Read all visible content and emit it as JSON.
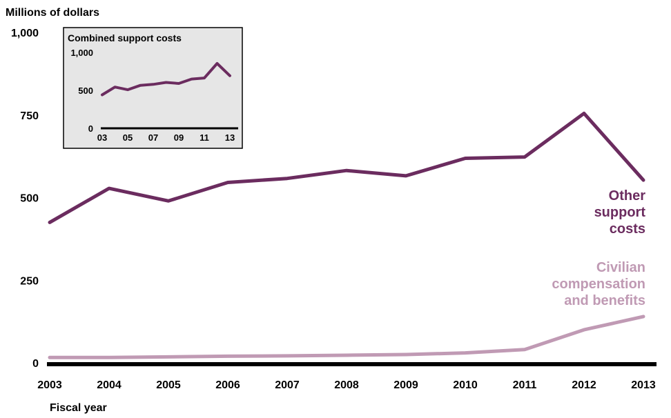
{
  "chart_data": [
    {
      "type": "line",
      "ylabel": "Millions of dollars",
      "xlabel": "Fiscal year",
      "x": [
        2003,
        2004,
        2005,
        2006,
        2007,
        2008,
        2009,
        2010,
        2011,
        2012,
        2013
      ],
      "x_tick_labels": [
        "2003",
        "2004",
        "2005",
        "2006",
        "2007",
        "2008",
        "2009",
        "2010",
        "2011",
        "2012",
        "2013"
      ],
      "y_ticks": [
        0,
        250,
        500,
        750,
        1000
      ],
      "y_tick_labels": [
        "0",
        "250",
        "500",
        "750",
        "1,000"
      ],
      "ylim": [
        0,
        1000
      ],
      "grid": false,
      "series": [
        {
          "name": "Other support costs",
          "label_lines": [
            "Other",
            "support",
            "costs"
          ],
          "color": "#6b2c5f",
          "values": [
            425,
            528,
            490,
            546,
            558,
            582,
            566,
            619,
            623,
            755,
            553
          ]
        },
        {
          "name": "Civilian compensation and benefits",
          "label_lines": [
            "Civilian",
            "compensation",
            "and benefits"
          ],
          "color": "#c09ab4",
          "values": [
            16,
            16,
            18,
            20,
            21,
            23,
            25,
            30,
            40,
            100,
            140
          ]
        }
      ]
    },
    {
      "type": "line",
      "title": "Combined support costs",
      "x": [
        2003,
        2004,
        2005,
        2006,
        2007,
        2008,
        2009,
        2010,
        2011,
        2012,
        2013
      ],
      "x_tick_labels": [
        "03",
        "05",
        "07",
        "09",
        "11",
        "13"
      ],
      "x_tick_positions": [
        2003,
        2005,
        2007,
        2009,
        2011,
        2013
      ],
      "y_ticks": [
        0,
        500,
        1000
      ],
      "y_tick_labels": [
        "0",
        "500",
        "1,000"
      ],
      "ylim": [
        0,
        1000
      ],
      "grid": false,
      "background": "#e6e6e6",
      "series": [
        {
          "color": "#6b2c5f",
          "values": [
            441,
            544,
            508,
            566,
            579,
            605,
            591,
            649,
            663,
            855,
            693
          ]
        }
      ]
    }
  ]
}
